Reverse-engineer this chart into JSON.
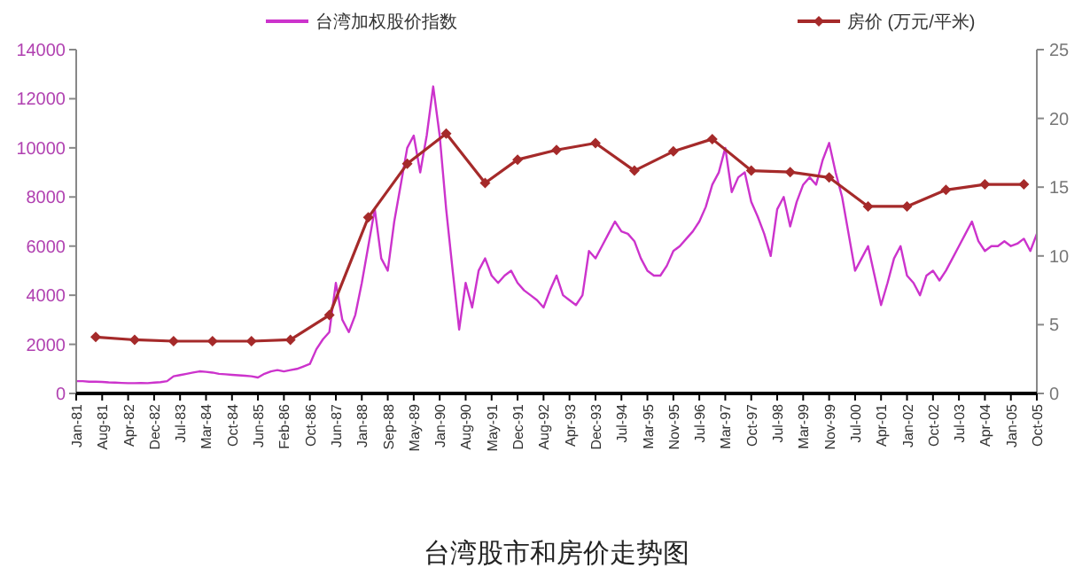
{
  "chart_data": {
    "type": "line",
    "title": "台湾股市和房价走势图",
    "categories": [
      "Jan-81",
      null,
      null,
      null,
      "Aug-81",
      null,
      null,
      null,
      "Apr-82",
      null,
      null,
      null,
      "Dec-82",
      null,
      null,
      null,
      "Jul-83",
      null,
      null,
      null,
      "Mar-84",
      null,
      null,
      null,
      "Oct-84",
      null,
      null,
      null,
      "Jun-85",
      null,
      null,
      null,
      "Feb-86",
      null,
      null,
      null,
      "Oct-86",
      null,
      null,
      null,
      "Jun-87",
      null,
      null,
      null,
      "Jan-88",
      null,
      null,
      null,
      "Sep-88",
      null,
      null,
      null,
      "May-89",
      null,
      null,
      null,
      "Jan-90",
      null,
      null,
      null,
      "Aug-90",
      null,
      null,
      null,
      "May-91",
      null,
      null,
      null,
      "Dec-91",
      null,
      null,
      null,
      "Aug-92",
      null,
      null,
      null,
      "Apr-93",
      null,
      null,
      null,
      "Dec-93",
      null,
      null,
      null,
      "Jul-94",
      null,
      null,
      null,
      "Mar-95",
      null,
      null,
      null,
      "Nov-95",
      null,
      null,
      null,
      "Jul-96",
      null,
      null,
      null,
      "Mar-97",
      null,
      null,
      null,
      "Oct-97",
      null,
      null,
      null,
      "Jul-98",
      null,
      null,
      null,
      "Mar-99",
      null,
      null,
      null,
      "Nov-99",
      null,
      null,
      null,
      "Jul-00",
      null,
      null,
      null,
      "Apr-01",
      null,
      null,
      null,
      "Jan-02",
      null,
      null,
      null,
      "Oct-02",
      null,
      null,
      null,
      "Jul-03",
      null,
      null,
      null,
      "Apr-04",
      null,
      null,
      null,
      "Jan-05",
      null,
      null,
      null,
      "Oct-05"
    ],
    "series": [
      {
        "name": "台湾加权股价指数",
        "color": "#cc33cc",
        "values": [
          500,
          500,
          480,
          480,
          470,
          450,
          440,
          430,
          420,
          420,
          430,
          420,
          440,
          460,
          500,
          700,
          750,
          800,
          850,
          900,
          880,
          850,
          800,
          780,
          760,
          740,
          720,
          700,
          650,
          800,
          900,
          950,
          900,
          950,
          1000,
          1100,
          1200,
          1800,
          2200,
          2500,
          4500,
          3000,
          2500,
          3200,
          4500,
          6000,
          7500,
          5500,
          5000,
          7000,
          8500,
          10000,
          10500,
          9000,
          10500,
          12500,
          10500,
          7500,
          5000,
          2600,
          4500,
          3500,
          5000,
          5500,
          4800,
          4500,
          4800,
          5000,
          4500,
          4200,
          4000,
          3800,
          3500,
          4200,
          4800,
          4000,
          3800,
          3600,
          4000,
          5800,
          5500,
          6000,
          6500,
          7000,
          6600,
          6500,
          6200,
          5500,
          5000,
          4800,
          4800,
          5200,
          5800,
          6000,
          6300,
          6600,
          7000,
          7600,
          8500,
          9000,
          10000,
          8200,
          8800,
          9000,
          7800,
          7200,
          6500,
          5600,
          7500,
          8000,
          6800,
          7800,
          8500,
          8800,
          8500,
          9500,
          10200,
          9000,
          8000,
          6500,
          5000,
          5500,
          6000,
          4800,
          3600,
          4500,
          5500,
          6000,
          4800,
          4500,
          4000,
          4800,
          5000,
          4600,
          5000,
          5500,
          6000,
          6500,
          7000,
          6200,
          5800,
          6000,
          6000,
          6200,
          6000,
          6100,
          6300,
          5800,
          6500
        ]
      },
      {
        "name": "房价 (万元/平米)",
        "color": "#a52a2a",
        "axis": "y2",
        "marker": "diamond",
        "values": [
          null,
          null,
          null,
          4.1,
          null,
          null,
          null,
          null,
          null,
          3.9,
          null,
          null,
          null,
          null,
          null,
          3.8,
          null,
          null,
          null,
          null,
          null,
          3.8,
          null,
          null,
          null,
          null,
          null,
          3.8,
          null,
          null,
          null,
          null,
          null,
          3.9,
          null,
          null,
          null,
          null,
          null,
          5.7,
          null,
          null,
          null,
          null,
          null,
          12.8,
          null,
          null,
          null,
          null,
          null,
          16.7,
          null,
          null,
          null,
          null,
          null,
          18.9,
          null,
          null,
          null,
          null,
          null,
          15.3,
          null,
          null,
          null,
          null,
          17.0,
          null,
          null,
          null,
          null,
          null,
          17.7,
          null,
          null,
          null,
          null,
          null,
          18.2,
          null,
          null,
          null,
          null,
          null,
          16.2,
          null,
          null,
          null,
          null,
          null,
          17.6,
          null,
          null,
          null,
          null,
          null,
          18.5,
          null,
          null,
          null,
          null,
          null,
          16.2,
          null,
          null,
          null,
          null,
          null,
          16.1,
          null,
          null,
          null,
          null,
          null,
          15.7,
          null,
          null,
          null,
          null,
          null,
          13.6,
          null,
          null,
          null,
          null,
          null,
          13.6,
          null,
          null,
          null,
          null,
          null,
          14.8,
          null,
          null,
          null,
          null,
          null,
          15.2,
          null,
          null,
          null,
          null,
          null,
          15.2,
          null,
          null
        ]
      }
    ],
    "ylim": [
      0,
      14000
    ],
    "yticks": [
      0,
      2000,
      4000,
      6000,
      8000,
      10000,
      12000,
      14000
    ],
    "y2lim": [
      0,
      25
    ],
    "y2ticks": [
      0,
      5,
      10,
      15,
      20,
      25
    ],
    "grid": false,
    "legend": "top"
  }
}
